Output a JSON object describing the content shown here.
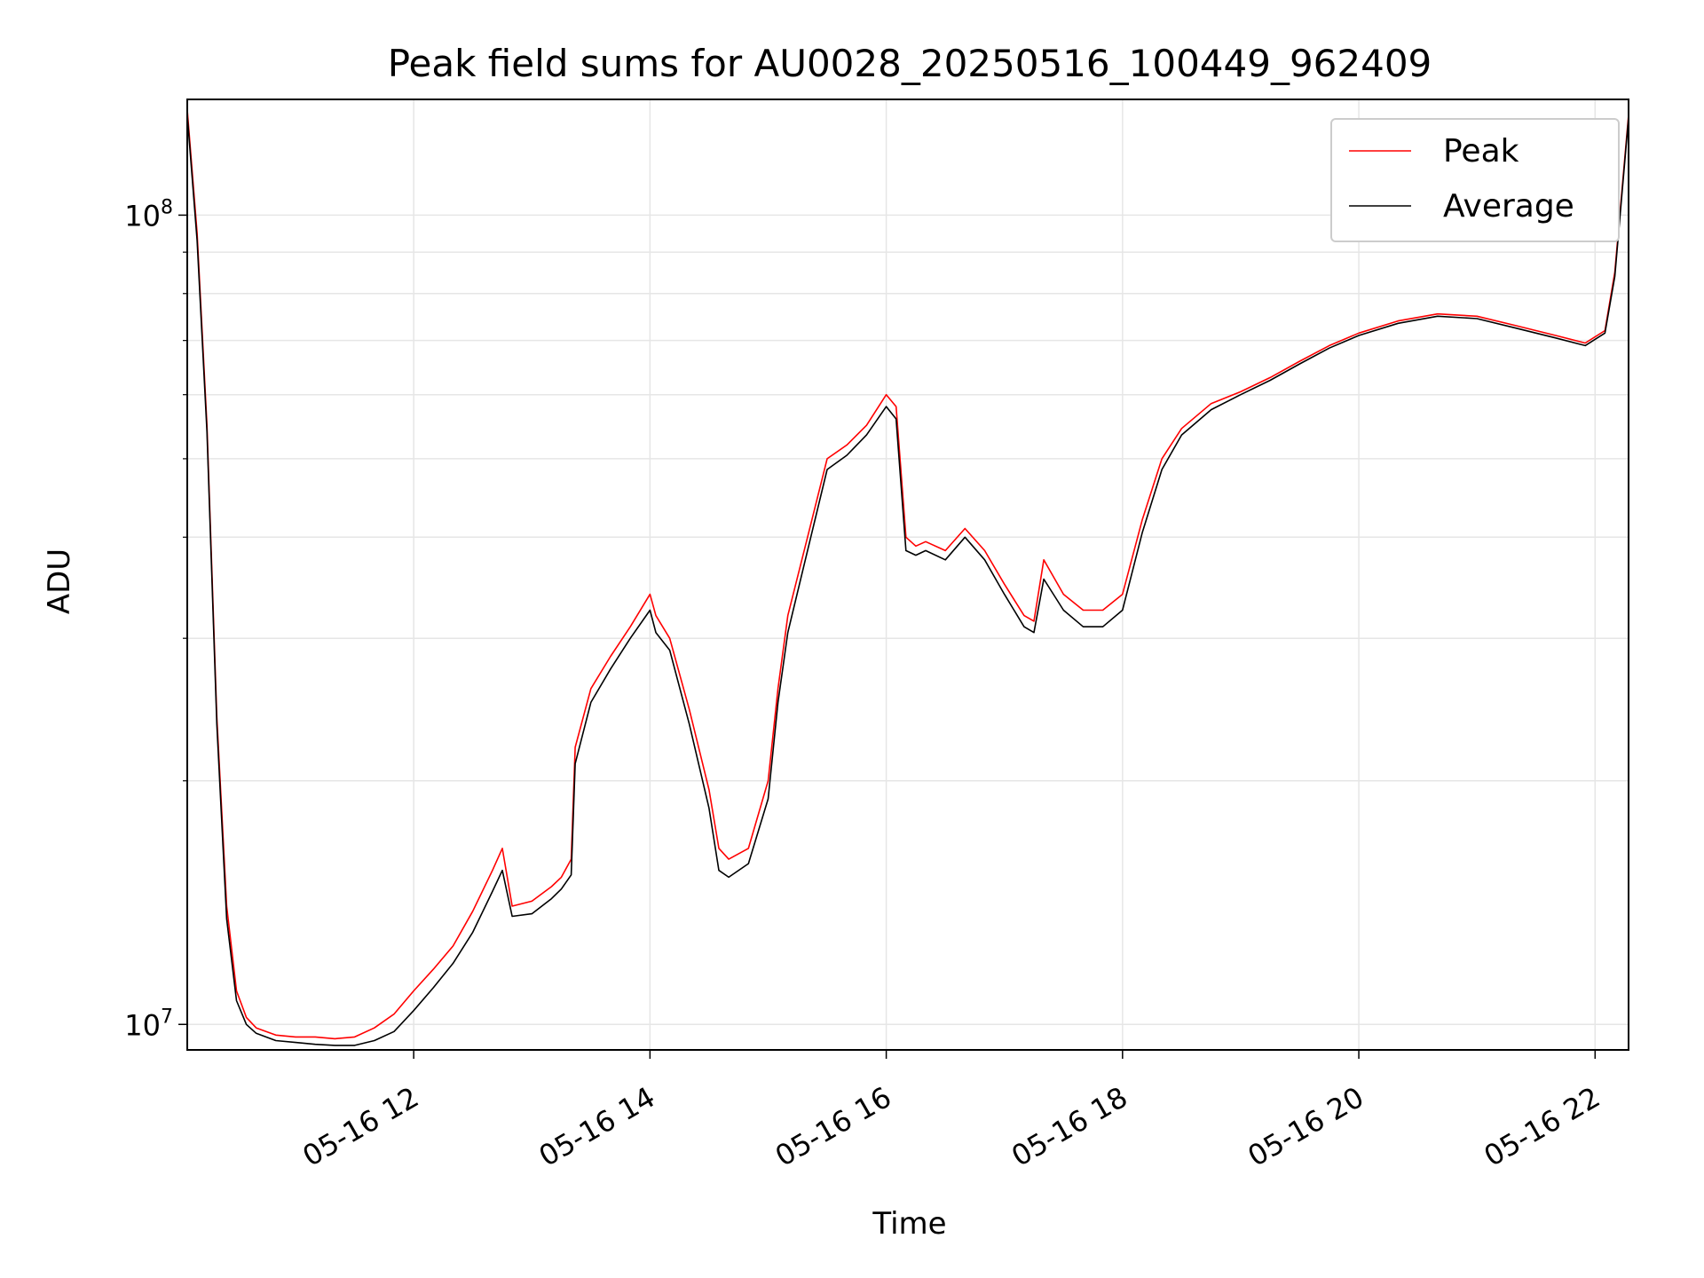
{
  "chart_data": {
    "type": "line",
    "title": "Peak field sums for AU0028_20250516_100449_962409",
    "xlabel": "Time",
    "ylabel": "ADU",
    "x_scale": "time",
    "y_scale": "log",
    "xlim": [
      "2025-05-16 10:05",
      "2025-05-16 22:17"
    ],
    "ylim": [
      9300000,
      139000000
    ],
    "grid": true,
    "legend": "top-right",
    "x_ticks": [
      {
        "value": "2025-05-16 12:00",
        "label": "05-16 12"
      },
      {
        "value": "2025-05-16 14:00",
        "label": "05-16 14"
      },
      {
        "value": "2025-05-16 16:00",
        "label": "05-16 16"
      },
      {
        "value": "2025-05-16 18:00",
        "label": "05-16 18"
      },
      {
        "value": "2025-05-16 20:00",
        "label": "05-16 20"
      },
      {
        "value": "2025-05-16 22:00",
        "label": "05-16 22"
      }
    ],
    "y_ticks": [
      {
        "value": 10000000,
        "base": "10",
        "exp": "7"
      },
      {
        "value": 100000000,
        "base": "10",
        "exp": "8"
      }
    ],
    "series": [
      {
        "name": "Peak",
        "color": "#ff0000",
        "x": [
          "2025-05-16 10:05",
          "2025-05-16 10:10",
          "2025-05-16 10:15",
          "2025-05-16 10:20",
          "2025-05-16 10:25",
          "2025-05-16 10:30",
          "2025-05-16 10:35",
          "2025-05-16 10:40",
          "2025-05-16 10:45",
          "2025-05-16 10:50",
          "2025-05-16 11:00",
          "2025-05-16 11:10",
          "2025-05-16 11:20",
          "2025-05-16 11:30",
          "2025-05-16 11:40",
          "2025-05-16 11:50",
          "2025-05-16 12:00",
          "2025-05-16 12:10",
          "2025-05-16 12:20",
          "2025-05-16 12:30",
          "2025-05-16 12:40",
          "2025-05-16 12:45",
          "2025-05-16 12:50",
          "2025-05-16 13:00",
          "2025-05-16 13:10",
          "2025-05-16 13:15",
          "2025-05-16 13:20",
          "2025-05-16 13:22",
          "2025-05-16 13:30",
          "2025-05-16 13:40",
          "2025-05-16 13:50",
          "2025-05-16 14:00",
          "2025-05-16 14:03",
          "2025-05-16 14:10",
          "2025-05-16 14:20",
          "2025-05-16 14:30",
          "2025-05-16 14:35",
          "2025-05-16 14:40",
          "2025-05-16 14:50",
          "2025-05-16 15:00",
          "2025-05-16 15:05",
          "2025-05-16 15:10",
          "2025-05-16 15:20",
          "2025-05-16 15:30",
          "2025-05-16 15:40",
          "2025-05-16 15:50",
          "2025-05-16 16:00",
          "2025-05-16 16:05",
          "2025-05-16 16:10",
          "2025-05-16 16:15",
          "2025-05-16 16:20",
          "2025-05-16 16:30",
          "2025-05-16 16:40",
          "2025-05-16 16:50",
          "2025-05-16 17:00",
          "2025-05-16 17:10",
          "2025-05-16 17:15",
          "2025-05-16 17:20",
          "2025-05-16 17:30",
          "2025-05-16 17:40",
          "2025-05-16 17:50",
          "2025-05-16 18:00",
          "2025-05-16 18:10",
          "2025-05-16 18:20",
          "2025-05-16 18:30",
          "2025-05-16 18:45",
          "2025-05-16 19:00",
          "2025-05-16 19:15",
          "2025-05-16 19:30",
          "2025-05-16 19:45",
          "2025-05-16 20:00",
          "2025-05-16 20:20",
          "2025-05-16 20:40",
          "2025-05-16 21:00",
          "2025-05-16 21:20",
          "2025-05-16 21:40",
          "2025-05-16 21:55",
          "2025-05-16 22:05",
          "2025-05-16 22:10",
          "2025-05-16 22:17"
        ],
        "y": [
          135000000,
          95000000,
          55000000,
          24000000,
          14000000,
          11000000,
          10200000,
          9900000,
          9800000,
          9700000,
          9650000,
          9650000,
          9600000,
          9650000,
          9900000,
          10300000,
          11000000,
          11700000,
          12500000,
          13800000,
          15500000,
          16500000,
          14000000,
          14200000,
          14800000,
          15200000,
          16000000,
          22000000,
          26000000,
          28500000,
          31000000,
          34000000,
          32000000,
          30000000,
          24500000,
          19500000,
          16500000,
          16000000,
          16500000,
          20000000,
          26000000,
          32000000,
          40000000,
          50000000,
          52000000,
          55000000,
          60000000,
          58000000,
          40000000,
          39000000,
          39500000,
          38500000,
          41000000,
          38500000,
          35000000,
          32000000,
          31500000,
          37500000,
          34000000,
          32500000,
          32500000,
          34000000,
          42000000,
          50000000,
          54500000,
          58500000,
          60500000,
          63000000,
          66000000,
          69000000,
          71500000,
          74000000,
          75500000,
          75000000,
          73000000,
          71000000,
          69500000,
          72000000,
          85000000,
          133000000
        ]
      },
      {
        "name": "Average",
        "color": "#000000",
        "x": [
          "2025-05-16 10:05",
          "2025-05-16 10:10",
          "2025-05-16 10:15",
          "2025-05-16 10:20",
          "2025-05-16 10:25",
          "2025-05-16 10:30",
          "2025-05-16 10:35",
          "2025-05-16 10:40",
          "2025-05-16 10:45",
          "2025-05-16 10:50",
          "2025-05-16 11:00",
          "2025-05-16 11:10",
          "2025-05-16 11:20",
          "2025-05-16 11:30",
          "2025-05-16 11:40",
          "2025-05-16 11:50",
          "2025-05-16 12:00",
          "2025-05-16 12:10",
          "2025-05-16 12:20",
          "2025-05-16 12:30",
          "2025-05-16 12:40",
          "2025-05-16 12:45",
          "2025-05-16 12:50",
          "2025-05-16 13:00",
          "2025-05-16 13:10",
          "2025-05-16 13:15",
          "2025-05-16 13:20",
          "2025-05-16 13:22",
          "2025-05-16 13:30",
          "2025-05-16 13:40",
          "2025-05-16 13:50",
          "2025-05-16 14:00",
          "2025-05-16 14:03",
          "2025-05-16 14:10",
          "2025-05-16 14:20",
          "2025-05-16 14:30",
          "2025-05-16 14:35",
          "2025-05-16 14:40",
          "2025-05-16 14:50",
          "2025-05-16 15:00",
          "2025-05-16 15:05",
          "2025-05-16 15:10",
          "2025-05-16 15:20",
          "2025-05-16 15:30",
          "2025-05-16 15:40",
          "2025-05-16 15:50",
          "2025-05-16 16:00",
          "2025-05-16 16:05",
          "2025-05-16 16:10",
          "2025-05-16 16:15",
          "2025-05-16 16:20",
          "2025-05-16 16:30",
          "2025-05-16 16:40",
          "2025-05-16 16:50",
          "2025-05-16 17:00",
          "2025-05-16 17:10",
          "2025-05-16 17:15",
          "2025-05-16 17:20",
          "2025-05-16 17:30",
          "2025-05-16 17:40",
          "2025-05-16 17:50",
          "2025-05-16 18:00",
          "2025-05-16 18:10",
          "2025-05-16 18:20",
          "2025-05-16 18:30",
          "2025-05-16 18:45",
          "2025-05-16 19:00",
          "2025-05-16 19:15",
          "2025-05-16 19:30",
          "2025-05-16 19:45",
          "2025-05-16 20:00",
          "2025-05-16 20:20",
          "2025-05-16 20:40",
          "2025-05-16 21:00",
          "2025-05-16 21:20",
          "2025-05-16 21:40",
          "2025-05-16 21:55",
          "2025-05-16 22:05",
          "2025-05-16 22:10",
          "2025-05-16 22:17"
        ],
        "y": [
          133000000,
          93000000,
          54000000,
          23500000,
          13500000,
          10700000,
          10000000,
          9750000,
          9650000,
          9550000,
          9500000,
          9450000,
          9420000,
          9420000,
          9550000,
          9800000,
          10400000,
          11100000,
          11900000,
          13000000,
          14600000,
          15500000,
          13600000,
          13700000,
          14300000,
          14700000,
          15300000,
          21000000,
          25000000,
          27500000,
          30000000,
          32500000,
          30500000,
          29000000,
          23500000,
          18500000,
          15500000,
          15200000,
          15800000,
          19000000,
          25000000,
          30500000,
          38500000,
          48500000,
          50500000,
          53500000,
          58000000,
          56000000,
          38500000,
          38000000,
          38500000,
          37500000,
          40000000,
          37500000,
          34000000,
          31000000,
          30500000,
          35500000,
          32500000,
          31000000,
          31000000,
          32500000,
          40500000,
          48500000,
          53500000,
          57500000,
          60000000,
          62500000,
          65500000,
          68500000,
          71000000,
          73500000,
          75000000,
          74500000,
          72500000,
          70500000,
          69000000,
          71500000,
          84000000,
          132000000
        ]
      }
    ]
  }
}
